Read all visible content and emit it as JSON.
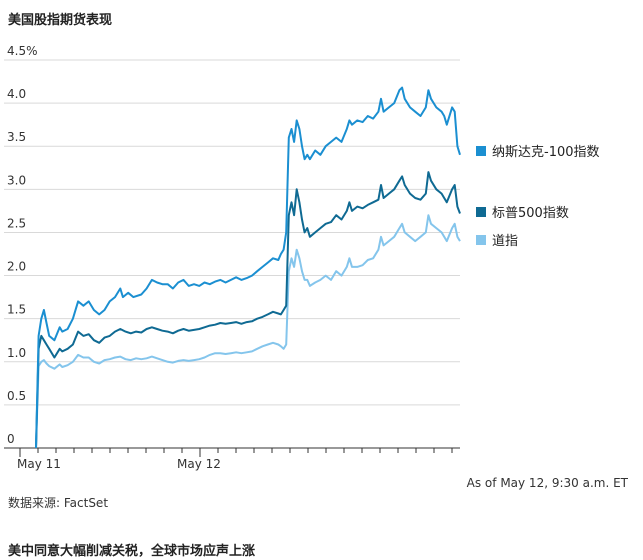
{
  "title": "美国股指期货表现",
  "as_of": "As of May 12, 9:30 a.m. ET",
  "source": "数据来源: FactSet",
  "footer_headline": "美中同意大幅削减关税，全球市场应声上涨",
  "chart_data": {
    "type": "line",
    "title": "美国股指期货表现",
    "xlabel": "",
    "ylabel": "",
    "ylim": [
      0,
      4.5
    ],
    "yticks": [
      "0",
      "0.5",
      "1.0",
      "1.5",
      "2.0",
      "2.5",
      "3.0",
      "3.5",
      "4.0",
      "4.5%"
    ],
    "xtick_labels": [
      "May 11",
      "May 12"
    ],
    "legend_position": "right",
    "grid": "horizontal",
    "series": [
      {
        "name": "纳斯达克-100指数",
        "color": "#1b8fd1",
        "points": [
          [
            0,
            0.0
          ],
          [
            1,
            1.3
          ],
          [
            2,
            1.5
          ],
          [
            3,
            1.6
          ],
          [
            4,
            1.45
          ],
          [
            5,
            1.3
          ],
          [
            7,
            1.25
          ],
          [
            9,
            1.4
          ],
          [
            10,
            1.35
          ],
          [
            12,
            1.38
          ],
          [
            14,
            1.5
          ],
          [
            16,
            1.7
          ],
          [
            18,
            1.65
          ],
          [
            20,
            1.7
          ],
          [
            22,
            1.6
          ],
          [
            24,
            1.55
          ],
          [
            26,
            1.6
          ],
          [
            28,
            1.7
          ],
          [
            30,
            1.75
          ],
          [
            32,
            1.85
          ],
          [
            33,
            1.75
          ],
          [
            35,
            1.8
          ],
          [
            37,
            1.75
          ],
          [
            40,
            1.78
          ],
          [
            42,
            1.85
          ],
          [
            44,
            1.95
          ],
          [
            46,
            1.92
          ],
          [
            48,
            1.9
          ],
          [
            50,
            1.9
          ],
          [
            52,
            1.85
          ],
          [
            54,
            1.92
          ],
          [
            56,
            1.95
          ],
          [
            58,
            1.88
          ],
          [
            60,
            1.9
          ],
          [
            62,
            1.88
          ],
          [
            64,
            1.92
          ],
          [
            66,
            1.9
          ],
          [
            68,
            1.93
          ],
          [
            70,
            1.95
          ],
          [
            72,
            1.92
          ],
          [
            74,
            1.95
          ],
          [
            76,
            1.98
          ],
          [
            78,
            1.95
          ],
          [
            80,
            1.97
          ],
          [
            82,
            2.0
          ],
          [
            84,
            2.05
          ],
          [
            86,
            2.1
          ],
          [
            88,
            2.15
          ],
          [
            90,
            2.2
          ],
          [
            92,
            2.18
          ],
          [
            93,
            2.25
          ],
          [
            94,
            2.3
          ],
          [
            95,
            2.5
          ],
          [
            96,
            3.6
          ],
          [
            97,
            3.7
          ],
          [
            98,
            3.55
          ],
          [
            99,
            3.8
          ],
          [
            100,
            3.7
          ],
          [
            101,
            3.5
          ],
          [
            102,
            3.35
          ],
          [
            103,
            3.4
          ],
          [
            104,
            3.35
          ],
          [
            106,
            3.45
          ],
          [
            108,
            3.4
          ],
          [
            110,
            3.5
          ],
          [
            112,
            3.55
          ],
          [
            114,
            3.6
          ],
          [
            116,
            3.55
          ],
          [
            118,
            3.7
          ],
          [
            119,
            3.8
          ],
          [
            120,
            3.75
          ],
          [
            122,
            3.8
          ],
          [
            124,
            3.78
          ],
          [
            126,
            3.85
          ],
          [
            128,
            3.82
          ],
          [
            130,
            3.9
          ],
          [
            131,
            4.05
          ],
          [
            132,
            3.9
          ],
          [
            134,
            3.95
          ],
          [
            136,
            4.0
          ],
          [
            138,
            4.15
          ],
          [
            139,
            4.18
          ],
          [
            140,
            4.05
          ],
          [
            142,
            3.95
          ],
          [
            144,
            3.9
          ],
          [
            146,
            3.85
          ],
          [
            148,
            3.95
          ],
          [
            149,
            4.15
          ],
          [
            150,
            4.05
          ],
          [
            152,
            3.95
          ],
          [
            154,
            3.9
          ],
          [
            155,
            3.85
          ],
          [
            156,
            3.75
          ],
          [
            158,
            3.95
          ],
          [
            159,
            3.9
          ],
          [
            160,
            3.5
          ],
          [
            161,
            3.4
          ]
        ]
      },
      {
        "name": "标普500指数",
        "color": "#0f6a93",
        "points": [
          [
            0,
            0.0
          ],
          [
            1,
            1.15
          ],
          [
            2,
            1.3
          ],
          [
            3,
            1.25
          ],
          [
            4,
            1.2
          ],
          [
            5,
            1.15
          ],
          [
            7,
            1.05
          ],
          [
            9,
            1.15
          ],
          [
            10,
            1.12
          ],
          [
            12,
            1.15
          ],
          [
            14,
            1.2
          ],
          [
            16,
            1.35
          ],
          [
            18,
            1.3
          ],
          [
            20,
            1.32
          ],
          [
            22,
            1.25
          ],
          [
            24,
            1.22
          ],
          [
            26,
            1.28
          ],
          [
            28,
            1.3
          ],
          [
            30,
            1.35
          ],
          [
            32,
            1.38
          ],
          [
            34,
            1.35
          ],
          [
            36,
            1.33
          ],
          [
            38,
            1.35
          ],
          [
            40,
            1.34
          ],
          [
            42,
            1.38
          ],
          [
            44,
            1.4
          ],
          [
            46,
            1.38
          ],
          [
            48,
            1.36
          ],
          [
            50,
            1.35
          ],
          [
            52,
            1.33
          ],
          [
            54,
            1.36
          ],
          [
            56,
            1.38
          ],
          [
            58,
            1.36
          ],
          [
            60,
            1.37
          ],
          [
            62,
            1.38
          ],
          [
            64,
            1.4
          ],
          [
            66,
            1.42
          ],
          [
            68,
            1.43
          ],
          [
            70,
            1.45
          ],
          [
            72,
            1.44
          ],
          [
            74,
            1.45
          ],
          [
            76,
            1.46
          ],
          [
            78,
            1.44
          ],
          [
            80,
            1.46
          ],
          [
            82,
            1.47
          ],
          [
            84,
            1.5
          ],
          [
            86,
            1.52
          ],
          [
            88,
            1.55
          ],
          [
            90,
            1.58
          ],
          [
            92,
            1.56
          ],
          [
            93,
            1.55
          ],
          [
            94,
            1.6
          ],
          [
            95,
            1.65
          ],
          [
            96,
            2.7
          ],
          [
            97,
            2.85
          ],
          [
            98,
            2.7
          ],
          [
            99,
            3.0
          ],
          [
            100,
            2.85
          ],
          [
            101,
            2.65
          ],
          [
            102,
            2.5
          ],
          [
            103,
            2.55
          ],
          [
            104,
            2.45
          ],
          [
            106,
            2.5
          ],
          [
            108,
            2.55
          ],
          [
            110,
            2.6
          ],
          [
            112,
            2.62
          ],
          [
            114,
            2.7
          ],
          [
            116,
            2.65
          ],
          [
            118,
            2.75
          ],
          [
            119,
            2.85
          ],
          [
            120,
            2.75
          ],
          [
            122,
            2.8
          ],
          [
            124,
            2.78
          ],
          [
            126,
            2.82
          ],
          [
            128,
            2.85
          ],
          [
            130,
            2.88
          ],
          [
            131,
            3.05
          ],
          [
            132,
            2.9
          ],
          [
            134,
            2.95
          ],
          [
            136,
            3.0
          ],
          [
            138,
            3.1
          ],
          [
            139,
            3.15
          ],
          [
            140,
            3.05
          ],
          [
            142,
            2.95
          ],
          [
            144,
            2.9
          ],
          [
            146,
            2.88
          ],
          [
            148,
            2.95
          ],
          [
            149,
            3.2
          ],
          [
            150,
            3.1
          ],
          [
            152,
            3.0
          ],
          [
            154,
            2.95
          ],
          [
            155,
            2.9
          ],
          [
            156,
            2.85
          ],
          [
            158,
            3.0
          ],
          [
            159,
            3.05
          ],
          [
            160,
            2.8
          ],
          [
            161,
            2.72
          ]
        ]
      },
      {
        "name": "道指",
        "color": "#84c5ec",
        "points": [
          [
            0,
            0.0
          ],
          [
            1,
            0.95
          ],
          [
            2,
            1.0
          ],
          [
            3,
            1.02
          ],
          [
            4,
            0.98
          ],
          [
            5,
            0.95
          ],
          [
            7,
            0.92
          ],
          [
            9,
            0.97
          ],
          [
            10,
            0.94
          ],
          [
            12,
            0.96
          ],
          [
            14,
            1.0
          ],
          [
            16,
            1.08
          ],
          [
            18,
            1.05
          ],
          [
            20,
            1.05
          ],
          [
            22,
            1.0
          ],
          [
            24,
            0.98
          ],
          [
            26,
            1.02
          ],
          [
            28,
            1.03
          ],
          [
            30,
            1.05
          ],
          [
            32,
            1.06
          ],
          [
            34,
            1.03
          ],
          [
            36,
            1.02
          ],
          [
            38,
            1.04
          ],
          [
            40,
            1.03
          ],
          [
            42,
            1.04
          ],
          [
            44,
            1.06
          ],
          [
            46,
            1.04
          ],
          [
            48,
            1.02
          ],
          [
            50,
            1.0
          ],
          [
            52,
            0.99
          ],
          [
            54,
            1.01
          ],
          [
            56,
            1.02
          ],
          [
            58,
            1.01
          ],
          [
            60,
            1.02
          ],
          [
            62,
            1.03
          ],
          [
            64,
            1.05
          ],
          [
            66,
            1.08
          ],
          [
            68,
            1.1
          ],
          [
            70,
            1.1
          ],
          [
            72,
            1.09
          ],
          [
            74,
            1.1
          ],
          [
            76,
            1.11
          ],
          [
            78,
            1.1
          ],
          [
            80,
            1.11
          ],
          [
            82,
            1.12
          ],
          [
            84,
            1.15
          ],
          [
            86,
            1.18
          ],
          [
            88,
            1.2
          ],
          [
            90,
            1.22
          ],
          [
            92,
            1.2
          ],
          [
            93,
            1.18
          ],
          [
            94,
            1.15
          ],
          [
            95,
            1.2
          ],
          [
            96,
            2.05
          ],
          [
            97,
            2.2
          ],
          [
            98,
            2.1
          ],
          [
            99,
            2.3
          ],
          [
            100,
            2.2
          ],
          [
            101,
            2.05
          ],
          [
            102,
            1.95
          ],
          [
            103,
            1.95
          ],
          [
            104,
            1.88
          ],
          [
            106,
            1.92
          ],
          [
            108,
            1.95
          ],
          [
            110,
            2.0
          ],
          [
            112,
            1.95
          ],
          [
            114,
            2.05
          ],
          [
            116,
            2.0
          ],
          [
            118,
            2.1
          ],
          [
            119,
            2.2
          ],
          [
            120,
            2.1
          ],
          [
            122,
            2.1
          ],
          [
            124,
            2.12
          ],
          [
            126,
            2.18
          ],
          [
            128,
            2.2
          ],
          [
            130,
            2.3
          ],
          [
            131,
            2.45
          ],
          [
            132,
            2.35
          ],
          [
            134,
            2.4
          ],
          [
            136,
            2.45
          ],
          [
            138,
            2.55
          ],
          [
            139,
            2.6
          ],
          [
            140,
            2.5
          ],
          [
            142,
            2.45
          ],
          [
            144,
            2.4
          ],
          [
            146,
            2.45
          ],
          [
            148,
            2.5
          ],
          [
            149,
            2.7
          ],
          [
            150,
            2.6
          ],
          [
            152,
            2.55
          ],
          [
            154,
            2.5
          ],
          [
            155,
            2.45
          ],
          [
            156,
            2.4
          ],
          [
            158,
            2.55
          ],
          [
            159,
            2.6
          ],
          [
            160,
            2.45
          ],
          [
            161,
            2.4
          ]
        ]
      }
    ]
  }
}
